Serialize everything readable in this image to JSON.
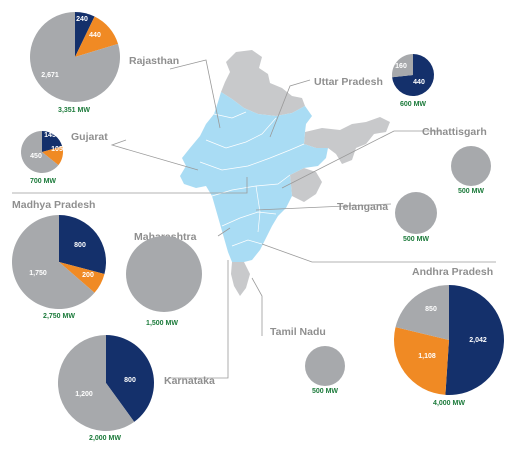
{
  "colors": {
    "navy": "#14306b",
    "orange": "#f08a24",
    "gray": "#a7a9ac",
    "map_grey": "#c8c9cb",
    "map_blue": "#a9dcf4",
    "total_green": "#1b7a3a",
    "label_grey": "#8f8f8f"
  },
  "states": [
    {
      "id": "rajasthan",
      "name": "Rajasthan",
      "total": "3,351 MW",
      "slices": [
        {
          "value": 240,
          "label": "240",
          "color": "navy"
        },
        {
          "value": 440,
          "label": "440",
          "color": "orange"
        },
        {
          "value": 2671,
          "label": "2,671",
          "color": "gray"
        }
      ]
    },
    {
      "id": "uttar-pradesh",
      "name": "Uttar Pradesh",
      "total": "600 MW",
      "slices": [
        {
          "value": 440,
          "label": "440",
          "color": "navy"
        },
        {
          "value": 160,
          "label": "160",
          "color": "gray"
        }
      ]
    },
    {
      "id": "gujarat",
      "name": "Gujarat",
      "total": "700 MW",
      "slices": [
        {
          "value": 145,
          "label": "145",
          "color": "navy"
        },
        {
          "value": 105,
          "label": "105",
          "color": "orange"
        },
        {
          "value": 450,
          "label": "450",
          "color": "gray"
        }
      ]
    },
    {
      "id": "chhattisgarh",
      "name": "Chhattisgarh",
      "total": "500 MW",
      "slices": [
        {
          "value": 500,
          "label": "",
          "color": "gray"
        }
      ]
    },
    {
      "id": "madhya-pradesh",
      "name": "Madhya Pradesh",
      "total": "2,750 MW",
      "slices": [
        {
          "value": 800,
          "label": "800",
          "color": "navy"
        },
        {
          "value": 200,
          "label": "200",
          "color": "orange"
        },
        {
          "value": 1750,
          "label": "1,750",
          "color": "gray"
        }
      ]
    },
    {
      "id": "telangana",
      "name": "Telangana",
      "total": "500 MW",
      "slices": [
        {
          "value": 500,
          "label": "",
          "color": "gray"
        }
      ]
    },
    {
      "id": "maharashtra",
      "name": "Maharashtra",
      "total": "1,500 MW",
      "slices": [
        {
          "value": 1500,
          "label": "",
          "color": "gray"
        }
      ]
    },
    {
      "id": "andhra-pradesh",
      "name": "Andhra Pradesh",
      "total": "4,000 MW",
      "slices": [
        {
          "value": 2042,
          "label": "2,042",
          "color": "navy"
        },
        {
          "value": 1108,
          "label": "1,108",
          "color": "orange"
        },
        {
          "value": 850,
          "label": "850",
          "color": "gray"
        }
      ]
    },
    {
      "id": "tamil-nadu",
      "name": "Tamil Nadu",
      "total": "500 MW",
      "slices": [
        {
          "value": 500,
          "label": "",
          "color": "gray"
        }
      ]
    },
    {
      "id": "karnataka",
      "name": "Karnataka",
      "total": "2,000 MW",
      "slices": [
        {
          "value": 800,
          "label": "800",
          "color": "navy"
        },
        {
          "value": 1200,
          "label": "1,200",
          "color": "gray"
        }
      ]
    }
  ]
}
